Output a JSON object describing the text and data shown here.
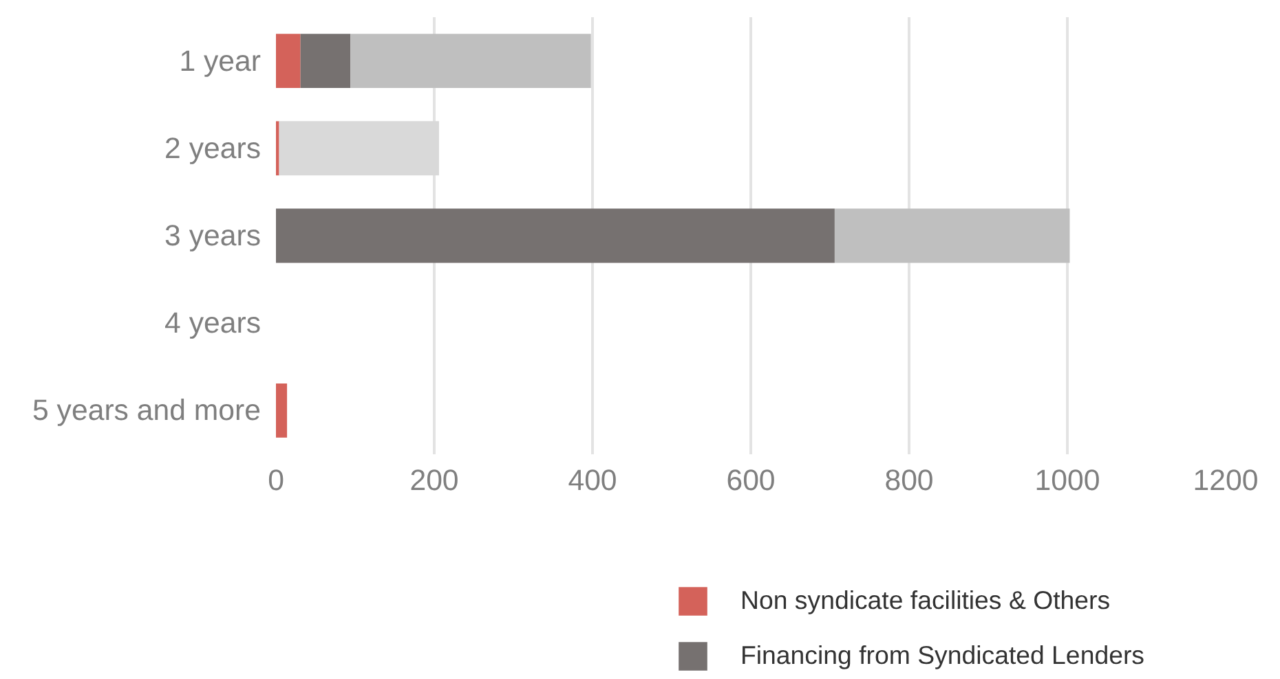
{
  "chart_data": {
    "type": "bar",
    "orientation": "horizontal",
    "stacked": true,
    "categories": [
      "1 year",
      "2 years",
      "3 years",
      "4 years",
      "5 years and more"
    ],
    "series": [
      {
        "name": "Non syndicate facilities & Others",
        "color": "#d4625a",
        "values": [
          31,
          4,
          0,
          0,
          14
        ]
      },
      {
        "name": "Financing from Syndicated Lenders",
        "color": "#767170",
        "values": [
          63,
          0,
          706,
          0,
          0
        ]
      },
      {
        "color": "#bfbfbf",
        "values": [
          304,
          0,
          297,
          0,
          0
        ]
      },
      {
        "color": "#d9d9d9",
        "values": [
          0,
          202,
          0,
          0,
          0
        ]
      }
    ],
    "xlim": [
      0,
      1200
    ],
    "xticks": [
      0,
      200,
      400,
      600,
      800,
      1000,
      1200
    ],
    "grid": "x",
    "legend": "bottom"
  }
}
